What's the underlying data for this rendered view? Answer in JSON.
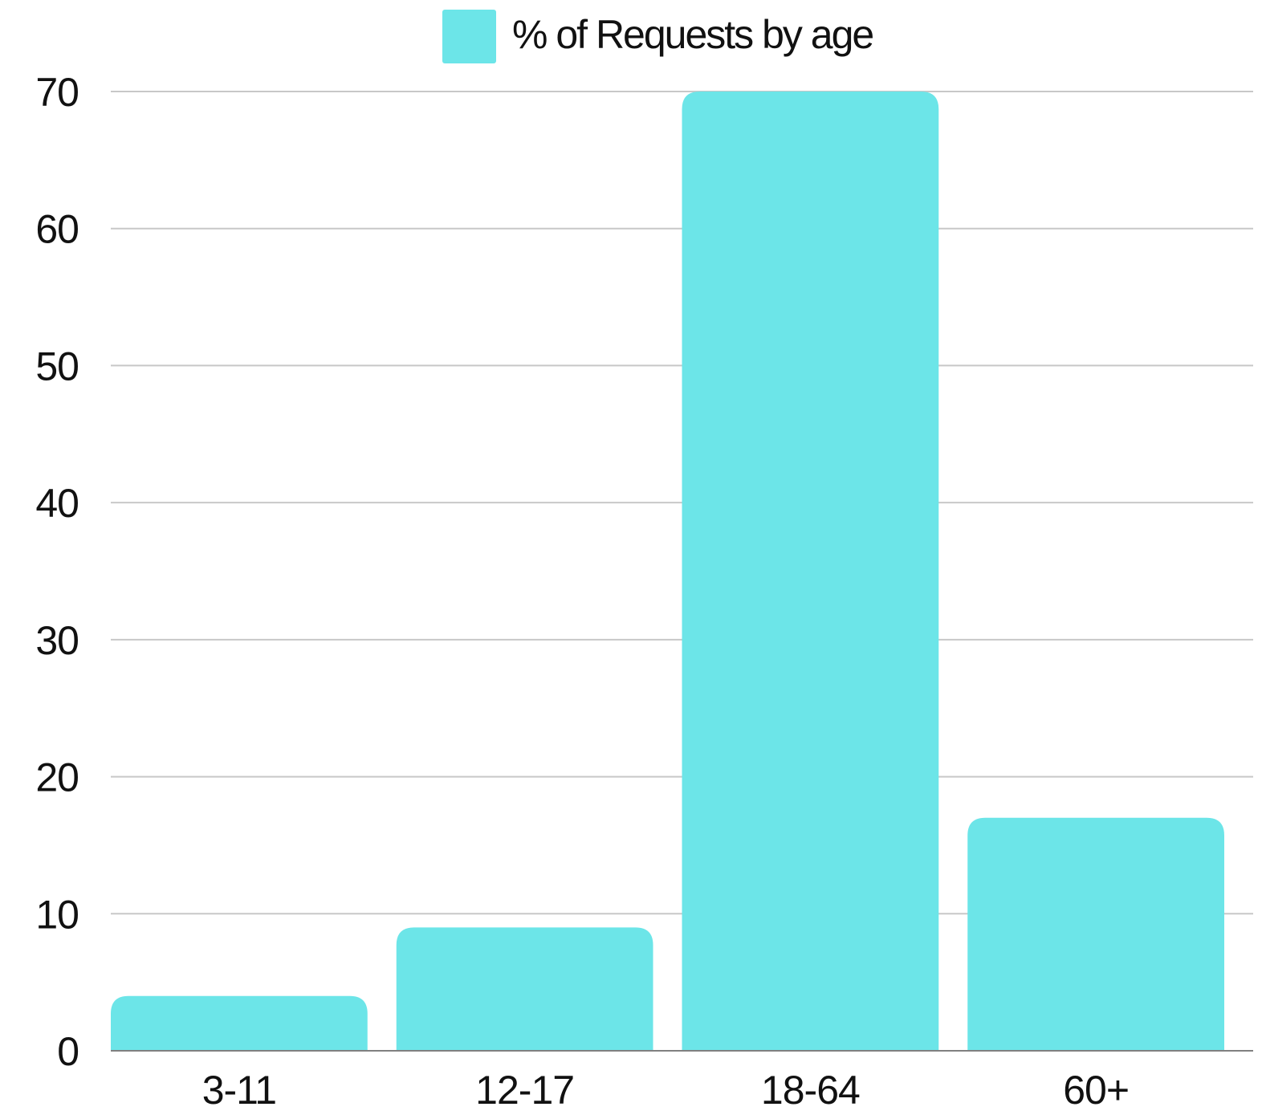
{
  "chart_data": {
    "type": "bar",
    "title": "",
    "xlabel": "",
    "ylabel": "",
    "categories": [
      "3-11",
      "12-17",
      "18-64",
      "60+"
    ],
    "series": [
      {
        "name": "% of Requests by age",
        "values": [
          4,
          9,
          70,
          17
        ]
      }
    ],
    "ylim": [
      0,
      70
    ],
    "yticks": [
      0,
      10,
      20,
      30,
      40,
      50,
      60,
      70
    ],
    "grid": true,
    "legend_position": "top-center",
    "colors": {
      "bar": "#6ce5e8",
      "grid": "#c8c8c8",
      "axis": "#808080",
      "text": "#111111"
    }
  }
}
